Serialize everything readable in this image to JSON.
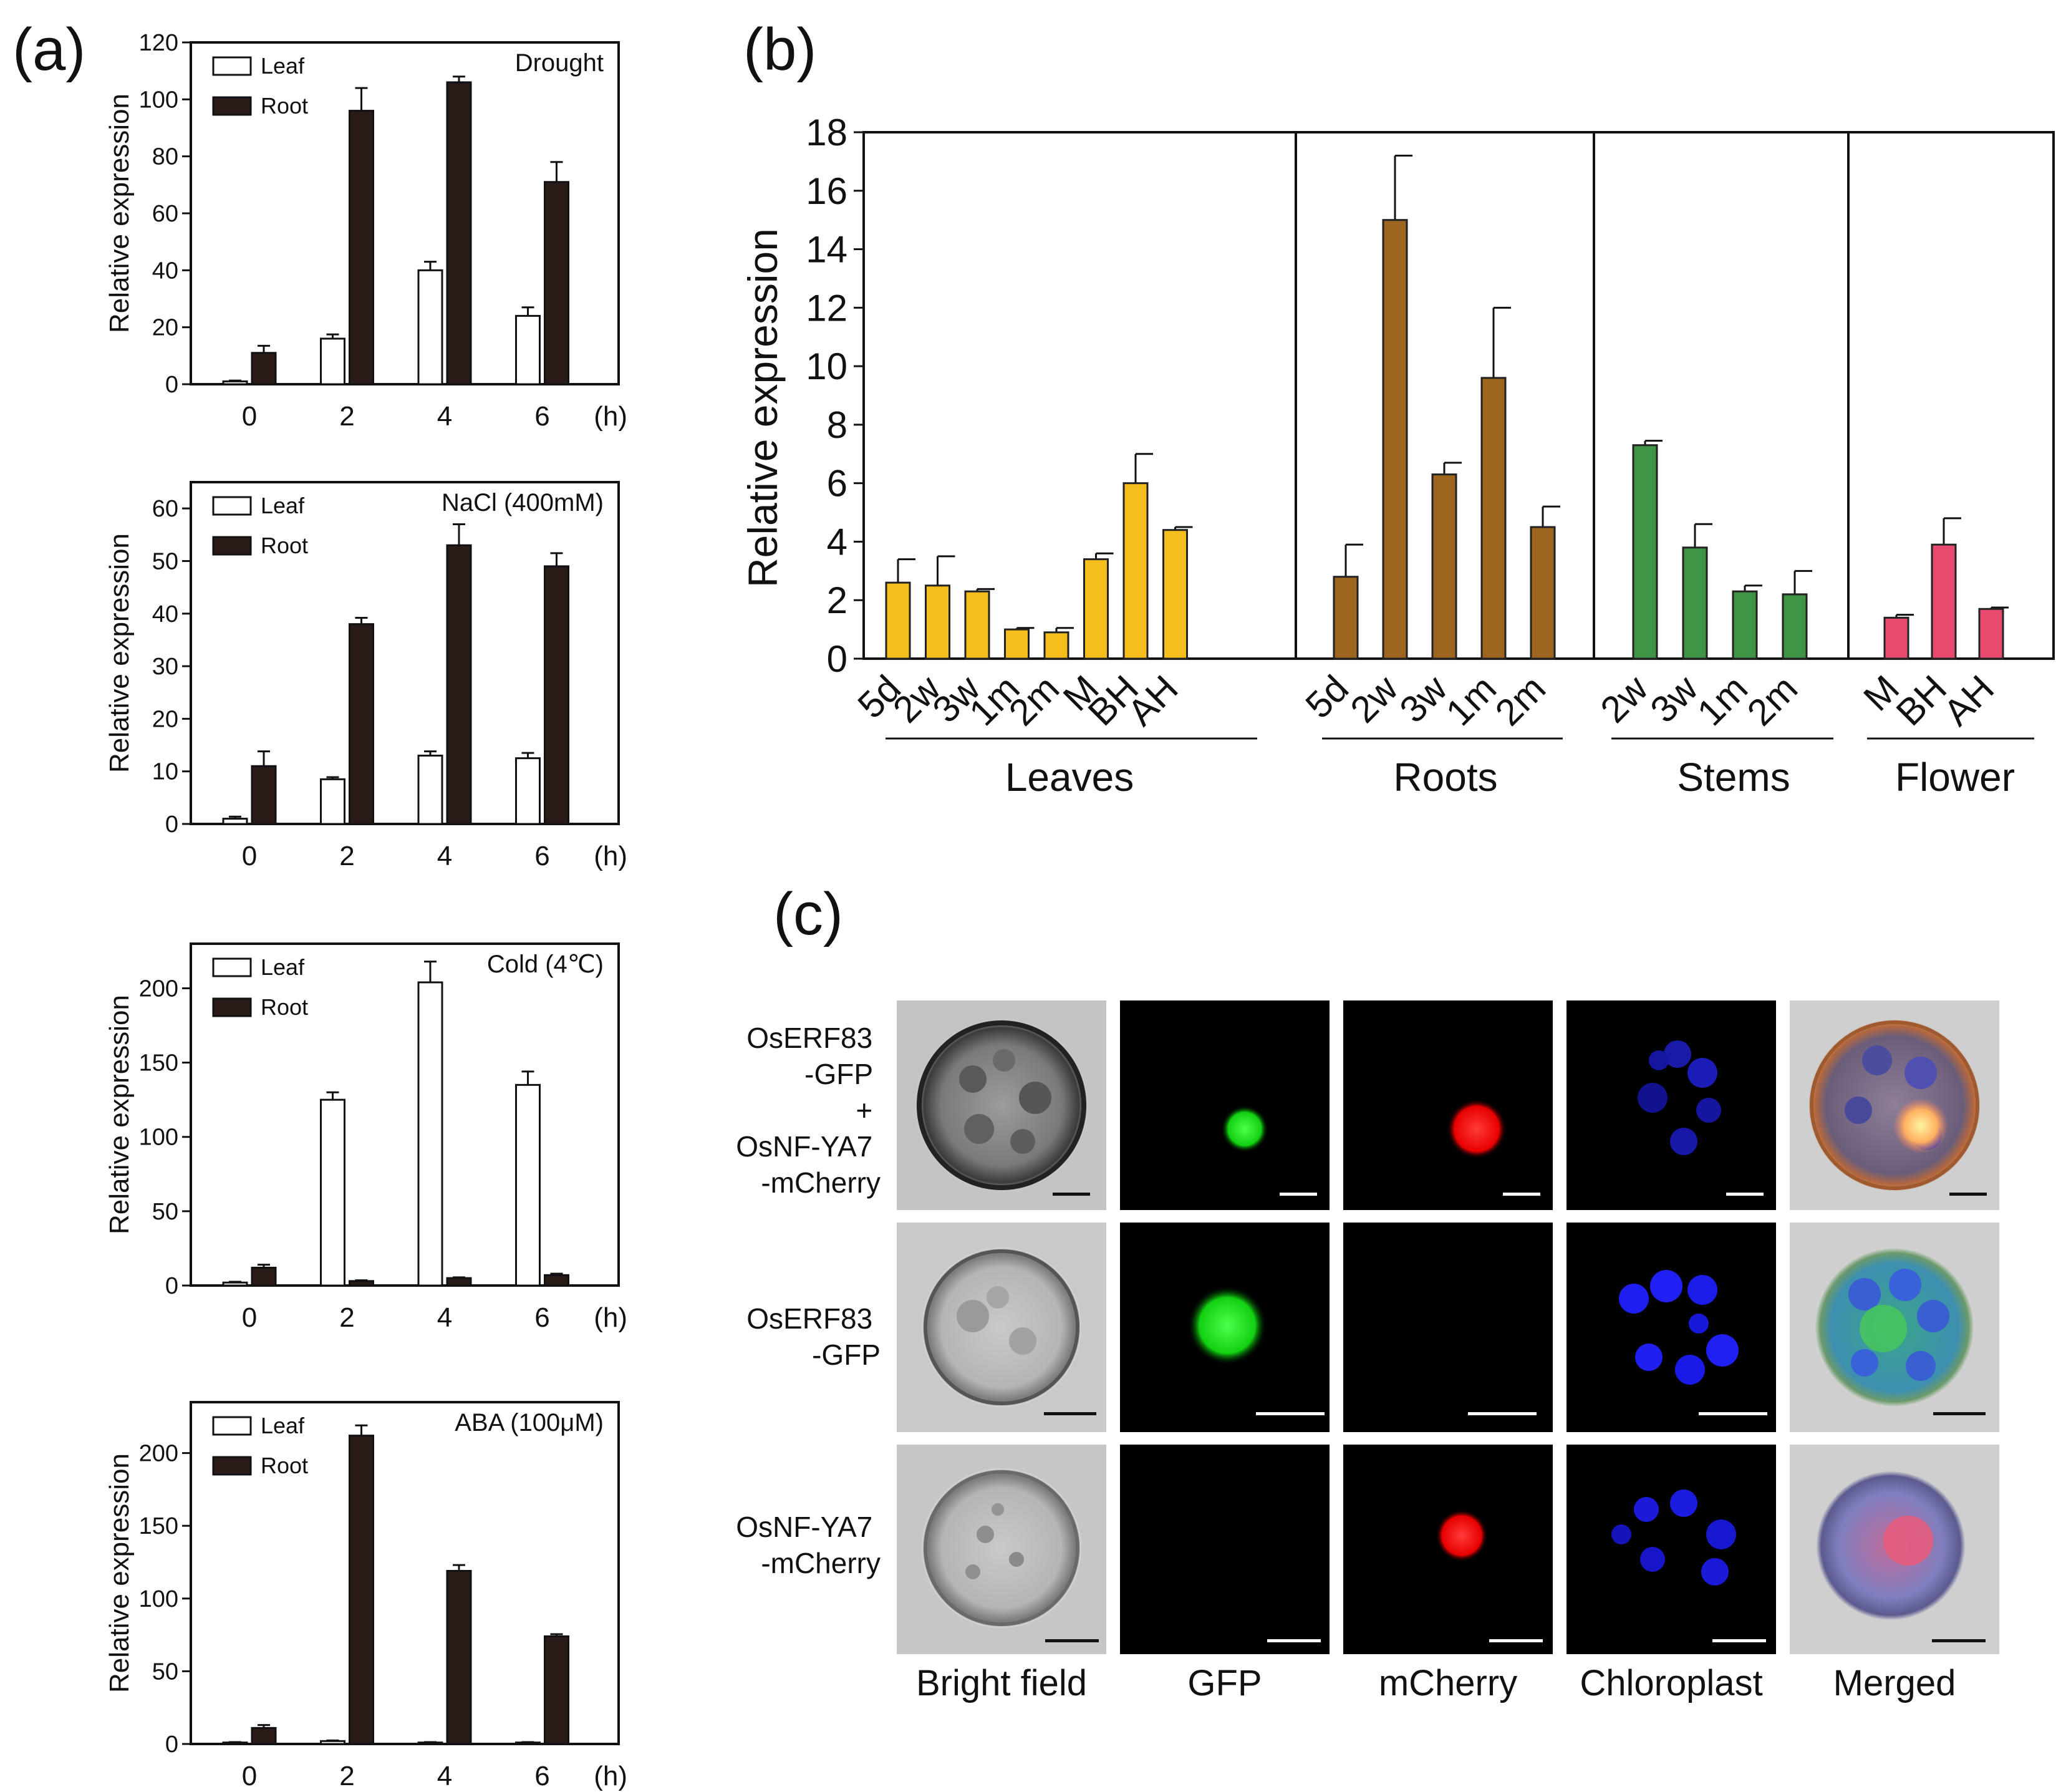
{
  "panels": {
    "a": "(a)",
    "b": "(b)",
    "c": "(c)"
  },
  "chart_data": [
    {
      "type": "bar",
      "title": "Drought",
      "ylabel": "Relative expression",
      "xunit": "(h)",
      "categories": [
        "0",
        "2",
        "4",
        "6"
      ],
      "ylim": [
        0,
        120
      ],
      "yticks": [
        0,
        20,
        40,
        60,
        80,
        100,
        120
      ],
      "series": [
        {
          "name": "Leaf",
          "values": [
            1,
            16,
            40,
            24
          ],
          "errors": [
            0.3,
            1.5,
            3,
            3
          ]
        },
        {
          "name": "Root",
          "values": [
            11,
            96,
            106,
            71
          ],
          "errors": [
            2.5,
            8,
            2,
            7
          ]
        }
      ]
    },
    {
      "type": "bar",
      "title": "NaCl (400mM)",
      "ylabel": "Relative expression",
      "xunit": "(h)",
      "categories": [
        "0",
        "2",
        "4",
        "6"
      ],
      "ylim": [
        0,
        65
      ],
      "yticks": [
        0,
        10,
        20,
        30,
        40,
        50,
        60
      ],
      "series": [
        {
          "name": "Leaf",
          "values": [
            1,
            8.5,
            13,
            12.5
          ],
          "errors": [
            0.4,
            0.4,
            0.8,
            1
          ]
        },
        {
          "name": "Root",
          "values": [
            11,
            38,
            53,
            49
          ],
          "errors": [
            2.8,
            1.2,
            4,
            2.5
          ]
        }
      ]
    },
    {
      "type": "bar",
      "title": "Cold (4℃)",
      "ylabel": "Relative expression",
      "xunit": "(h)",
      "categories": [
        "0",
        "2",
        "4",
        "6"
      ],
      "ylim": [
        0,
        230
      ],
      "yticks": [
        0,
        50,
        100,
        150,
        200
      ],
      "series": [
        {
          "name": "Leaf",
          "values": [
            2,
            125,
            204,
            135
          ],
          "errors": [
            0.5,
            5,
            14,
            9
          ]
        },
        {
          "name": "Root",
          "values": [
            12,
            3,
            5,
            7
          ],
          "errors": [
            2,
            0.5,
            0.5,
            1
          ]
        }
      ]
    },
    {
      "type": "bar",
      "title": "ABA (100μM)",
      "ylabel": "Relative expression",
      "xunit": "(h)",
      "categories": [
        "0",
        "2",
        "4",
        "6"
      ],
      "ylim": [
        0,
        235
      ],
      "yticks": [
        0,
        50,
        100,
        150,
        200
      ],
      "series": [
        {
          "name": "Leaf",
          "values": [
            1,
            2,
            1,
            1
          ],
          "errors": [
            0.3,
            0.4,
            0.3,
            0.3
          ]
        },
        {
          "name": "Root",
          "values": [
            11,
            212,
            119,
            74
          ],
          "errors": [
            2,
            7,
            4,
            1.5
          ]
        }
      ]
    },
    {
      "type": "bar",
      "ylabel": "Relative expression",
      "ylim": [
        0,
        18
      ],
      "yticks": [
        0,
        2,
        4,
        6,
        8,
        10,
        12,
        14,
        16,
        18
      ],
      "groups": [
        {
          "name": "Leaves",
          "color": "#F6BE1C",
          "categories": [
            "5d",
            "2w",
            "3w",
            "1m",
            "2m",
            "M",
            "BH",
            "AH"
          ],
          "values": [
            2.6,
            2.5,
            2.3,
            1.0,
            0.9,
            3.4,
            6.0,
            4.4
          ],
          "errors": [
            0.8,
            1.0,
            0.08,
            0.05,
            0.15,
            0.2,
            1.0,
            0.1
          ]
        },
        {
          "name": "Roots",
          "color": "#9E6521",
          "categories": [
            "5d",
            "2w",
            "3w",
            "1m",
            "2m"
          ],
          "values": [
            2.8,
            15.0,
            6.3,
            9.6,
            4.5
          ],
          "errors": [
            1.1,
            2.2,
            0.4,
            2.4,
            0.7
          ]
        },
        {
          "name": "Stems",
          "color": "#3F9445",
          "categories": [
            "2w",
            "3w",
            "1m",
            "2m"
          ],
          "values": [
            7.3,
            3.8,
            2.3,
            2.2
          ],
          "errors": [
            0.15,
            0.8,
            0.2,
            0.8
          ]
        },
        {
          "name": "Flower",
          "color": "#E84A6E",
          "categories": [
            "M",
            "BH",
            "AH"
          ],
          "values": [
            1.4,
            3.9,
            1.7
          ],
          "errors": [
            0.1,
            0.9,
            0.05
          ]
        }
      ]
    }
  ],
  "microscopy": {
    "rows": [
      {
        "label_lines": [
          "OsERF83",
          "-GFP",
          "+",
          "OsNF-YA7",
          "-mCherry"
        ]
      },
      {
        "label_lines": [
          "OsERF83",
          "-GFP"
        ]
      },
      {
        "label_lines": [
          "OsNF-YA7",
          "-mCherry"
        ]
      }
    ],
    "columns": [
      "Bright field",
      "GFP",
      "mCherry",
      "Chloroplast",
      "Merged"
    ]
  }
}
